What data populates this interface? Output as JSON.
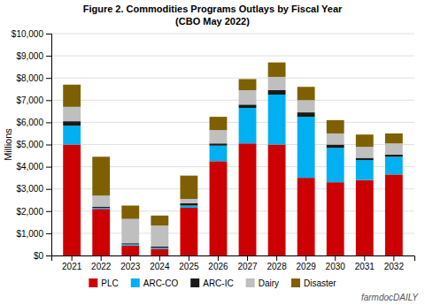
{
  "chart_data": {
    "type": "bar",
    "stacked": true,
    "title": "Figure 2. Commodities Programs Outlays by Fiscal Year",
    "subtitle": "(CBO May 2022)",
    "ylabel": "Millions",
    "categories": [
      "2021",
      "2022",
      "2023",
      "2024",
      "2025",
      "2026",
      "2027",
      "2028",
      "2029",
      "2030",
      "2031",
      "2032"
    ],
    "series": [
      {
        "name": "PLC",
        "color": "#cc0000",
        "values": [
          5000,
          2100,
          450,
          300,
          2150,
          4250,
          5050,
          5000,
          3500,
          3300,
          3400,
          3650
        ]
      },
      {
        "name": "ARC-CO",
        "color": "#00b0f0",
        "values": [
          850,
          50,
          50,
          50,
          100,
          700,
          1600,
          2250,
          2750,
          1550,
          900,
          800
        ]
      },
      {
        "name": "ARC-IC",
        "color": "#1a1a1a",
        "values": [
          200,
          50,
          50,
          50,
          100,
          100,
          150,
          200,
          200,
          150,
          100,
          100
        ]
      },
      {
        "name": "Dairy",
        "color": "#bfbfbf",
        "values": [
          650,
          500,
          1100,
          950,
          200,
          600,
          650,
          600,
          550,
          500,
          500,
          500
        ]
      },
      {
        "name": "Disaster",
        "color": "#7f6000",
        "values": [
          1000,
          1750,
          600,
          450,
          1050,
          600,
          500,
          650,
          600,
          600,
          550,
          450
        ]
      }
    ],
    "ylim": [
      0,
      10000
    ],
    "yticks": [
      {
        "value": 0,
        "label": "$0"
      },
      {
        "value": 1000,
        "label": "$1,000"
      },
      {
        "value": 2000,
        "label": "$2,000"
      },
      {
        "value": 3000,
        "label": "$3,000"
      },
      {
        "value": 4000,
        "label": "$4,000"
      },
      {
        "value": 5000,
        "label": "$5,000"
      },
      {
        "value": 6000,
        "label": "$6,000"
      },
      {
        "value": 7000,
        "label": "$7,000"
      },
      {
        "value": 8000,
        "label": "$8,000"
      },
      {
        "value": 9000,
        "label": "$9,000"
      },
      {
        "value": 10000,
        "label": "$10,000"
      }
    ],
    "grid": true,
    "legend": "bottom",
    "annotations": [
      {
        "text": "farmdocDAILY"
      }
    ]
  }
}
